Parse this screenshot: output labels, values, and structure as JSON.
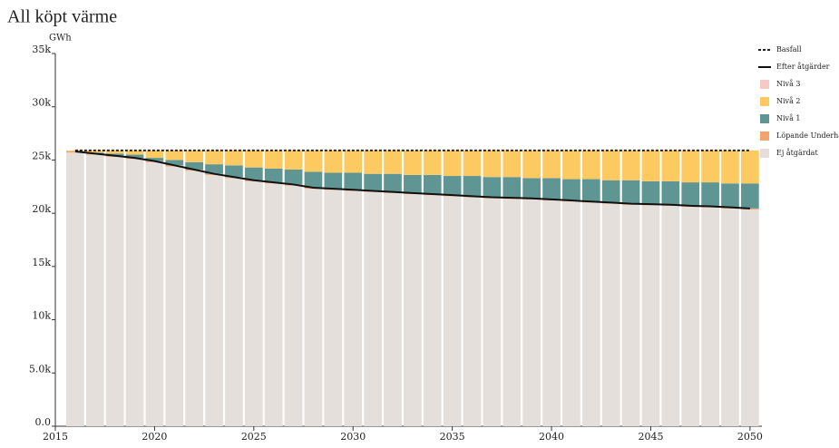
{
  "chart_data": {
    "type": "bar",
    "title": "All köpt värme",
    "y_label": "GWh",
    "x": [
      2016,
      2017,
      2018,
      2019,
      2020,
      2021,
      2022,
      2023,
      2024,
      2025,
      2026,
      2027,
      2028,
      2029,
      2030,
      2031,
      2032,
      2033,
      2034,
      2035,
      2036,
      2037,
      2038,
      2039,
      2040,
      2041,
      2042,
      2043,
      2044,
      2045,
      2046,
      2047,
      2048,
      2049,
      2050
    ],
    "xlim": [
      2015,
      2050.6
    ],
    "xticks": [
      2015,
      2020,
      2025,
      2030,
      2035,
      2040,
      2045,
      2050
    ],
    "ylim": [
      0,
      35000
    ],
    "yticks": [
      {
        "value": 0,
        "label": "0.0"
      },
      {
        "value": 5000,
        "label": "5.0k"
      },
      {
        "value": 10000,
        "label": "10k"
      },
      {
        "value": 15000,
        "label": "15k"
      },
      {
        "value": 20000,
        "label": "20k"
      },
      {
        "value": 25000,
        "label": "25k"
      },
      {
        "value": 30000,
        "label": "30k"
      },
      {
        "value": 35000,
        "label": "35k"
      }
    ],
    "legend": "top-right",
    "series": [
      {
        "name": "Basfall",
        "type": "line",
        "dashed": true,
        "color": "#222222",
        "values": [
          25900,
          25900,
          25900,
          25900,
          25900,
          25900,
          25900,
          25900,
          25900,
          25900,
          25900,
          25900,
          25900,
          25900,
          25900,
          25900,
          25900,
          25900,
          25900,
          25900,
          25900,
          25900,
          25900,
          25900,
          25900,
          25900,
          25900,
          25900,
          25900,
          25900,
          25900,
          25900,
          25900,
          25900,
          25900
        ]
      },
      {
        "name": "Efter åtgärder",
        "type": "line",
        "dashed": false,
        "color": "#111111",
        "values": [
          25800,
          25600,
          25400,
          25200,
          24900,
          24500,
          24100,
          23700,
          23400,
          23100,
          22900,
          22700,
          22400,
          22300,
          22200,
          22100,
          22000,
          21900,
          21800,
          21700,
          21600,
          21500,
          21450,
          21400,
          21300,
          21200,
          21100,
          21000,
          20900,
          20850,
          20800,
          20700,
          20650,
          20550,
          20450
        ]
      },
      {
        "name": "Nivå 3",
        "type": "bar",
        "color": "#f6c9c4",
        "values": [
          0,
          0,
          0,
          0,
          0,
          0,
          0,
          0,
          0,
          0,
          0,
          0,
          0,
          0,
          0,
          0,
          0,
          0,
          0,
          0,
          0,
          0,
          0,
          0,
          0,
          0,
          0,
          0,
          0,
          0,
          0,
          0,
          0,
          0,
          0
        ]
      },
      {
        "name": "Nivå 2",
        "type": "bar",
        "color": "#fdca62",
        "values": [
          100,
          200,
          300,
          400,
          700,
          900,
          1100,
          1300,
          1400,
          1600,
          1700,
          1800,
          2000,
          2100,
          2100,
          2200,
          2200,
          2300,
          2300,
          2400,
          2400,
          2500,
          2500,
          2600,
          2600,
          2700,
          2700,
          2800,
          2800,
          2900,
          2900,
          3000,
          3000,
          3100,
          3100
        ]
      },
      {
        "name": "Nivå 1",
        "type": "bar",
        "color": "#5f9694",
        "values": [
          0,
          100,
          200,
          300,
          300,
          500,
          700,
          900,
          1100,
          1200,
          1300,
          1400,
          1500,
          1500,
          1600,
          1600,
          1700,
          1700,
          1800,
          1800,
          1900,
          1900,
          1950,
          1900,
          2000,
          2000,
          2100,
          2100,
          2200,
          2150,
          2200,
          2200,
          2250,
          2250,
          2350
        ]
      },
      {
        "name": "Löpande Underhåll",
        "type": "bar",
        "color": "#f5a26c",
        "values": [
          100,
          100,
          100,
          100,
          100,
          100,
          100,
          100,
          100,
          100,
          100,
          100,
          100,
          100,
          100,
          100,
          100,
          100,
          100,
          100,
          100,
          100,
          100,
          100,
          100,
          100,
          100,
          100,
          100,
          100,
          100,
          100,
          100,
          100,
          100
        ]
      },
      {
        "name": "Ej åtgärdat",
        "type": "bar",
        "color": "#e4dfda",
        "values": [
          25700,
          25500,
          25300,
          25100,
          24800,
          24400,
          24000,
          23600,
          23300,
          23000,
          22800,
          22600,
          22300,
          22200,
          22100,
          22000,
          21900,
          21800,
          21700,
          21600,
          21500,
          21400,
          21350,
          21300,
          21200,
          21100,
          21000,
          20900,
          20800,
          20750,
          20700,
          20600,
          20550,
          20450,
          20350
        ]
      }
    ]
  }
}
